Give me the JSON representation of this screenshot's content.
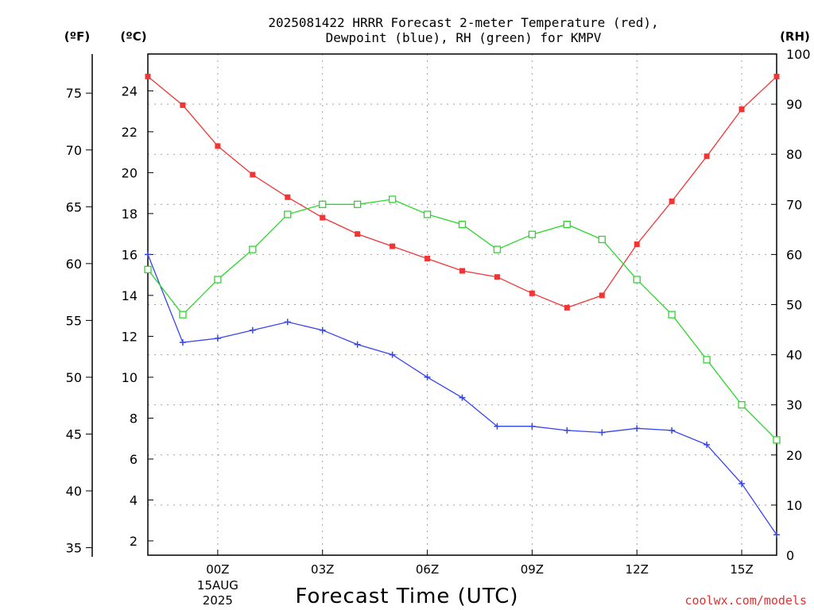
{
  "chart_data": {
    "type": "line",
    "title_line1": "2025081422 HRRR Forecast 2-meter Temperature (red),",
    "title_line2": "Dewpoint (blue), RH (green) for KMPV",
    "left_outer_unit": "(ºF)",
    "left_inner_unit": "(ºC)",
    "right_unit": "(RH)",
    "xlabel": "Forecast Time (UTC)",
    "credit": "coolwx.com/models",
    "x_hours": [
      22,
      23,
      24,
      25,
      26,
      27,
      28,
      29,
      30,
      31,
      32,
      33,
      34,
      35,
      36,
      37,
      38,
      39,
      40
    ],
    "x_ticks": [
      {
        "hour": 24,
        "label": "00Z",
        "label2": "15AUG",
        "label3": "2025"
      },
      {
        "hour": 27,
        "label": "03Z"
      },
      {
        "hour": 30,
        "label": "06Z"
      },
      {
        "hour": 33,
        "label": "09Z"
      },
      {
        "hour": 36,
        "label": "12Z"
      },
      {
        "hour": 39,
        "label": "15Z"
      }
    ],
    "grid": true,
    "celsius_axis": {
      "min": 1.3,
      "max": 25.8,
      "ticks": [
        2,
        4,
        6,
        8,
        10,
        12,
        14,
        16,
        18,
        20,
        22,
        24
      ]
    },
    "fahrenheit_axis": {
      "ticks": [
        35,
        40,
        45,
        50,
        55,
        60,
        65,
        70,
        75
      ]
    },
    "rh_axis": {
      "min": 0,
      "max": 100,
      "ticks": [
        0,
        10,
        20,
        30,
        40,
        50,
        60,
        70,
        80,
        90,
        100
      ]
    },
    "series": [
      {
        "name": "Temperature",
        "axis": "celsius",
        "color": "#f03535",
        "marker": "filled-square",
        "values": [
          24.7,
          23.3,
          21.3,
          19.9,
          18.8,
          17.8,
          17.0,
          16.4,
          15.8,
          15.2,
          14.9,
          14.1,
          13.4,
          14.0,
          16.5,
          18.6,
          20.8,
          23.1,
          24.7
        ]
      },
      {
        "name": "Dewpoint",
        "axis": "celsius",
        "color": "#3545f0",
        "marker": "plus",
        "values": [
          16.0,
          11.7,
          11.9,
          12.3,
          12.7,
          12.3,
          11.6,
          11.1,
          10.0,
          9.0,
          7.6,
          7.6,
          7.4,
          7.3,
          7.5,
          7.4,
          6.7,
          4.8,
          2.3
        ]
      },
      {
        "name": "RH",
        "axis": "rh",
        "color": "#2ad82a",
        "marker": "open-square",
        "values": [
          57,
          48,
          55,
          61,
          68,
          70,
          70,
          71,
          68,
          66,
          61,
          64,
          66,
          63,
          55,
          48,
          39,
          30,
          23
        ]
      }
    ]
  }
}
